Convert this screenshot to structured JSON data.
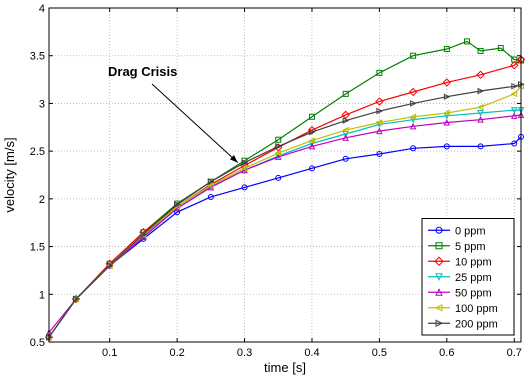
{
  "chart_data": {
    "type": "line",
    "xlabel": "time [s]",
    "ylabel": "velocity [m/s]",
    "xlim": [
      0.01,
      0.71
    ],
    "ylim": [
      0.5,
      4
    ],
    "xticks": [
      0.1,
      0.2,
      0.3,
      0.4,
      0.5,
      0.6,
      0.7
    ],
    "xtick_labels": [
      "0.1",
      "0.2",
      "0.3",
      "0.4",
      "0.5",
      "0.6",
      "0.7"
    ],
    "yticks": [
      0.5,
      1,
      1.5,
      2,
      2.5,
      3,
      3.5,
      4
    ],
    "ytick_labels": [
      "0.5",
      "1",
      "1.5",
      "2",
      "2.5",
      "3",
      "3.5",
      "4"
    ],
    "grid": true,
    "legend_position": "bottom-right",
    "annotation": {
      "text": "Drag Crisis",
      "arrow_to": [
        0.29,
        2.38
      ]
    },
    "series": [
      {
        "name": "0 ppm",
        "color": "#0000ff",
        "marker": "circle",
        "x": [
          0.01,
          0.05,
          0.1,
          0.15,
          0.2,
          0.25,
          0.3,
          0.35,
          0.4,
          0.45,
          0.5,
          0.55,
          0.6,
          0.65,
          0.7,
          0.71
        ],
        "y": [
          0.55,
          0.95,
          1.3,
          1.58,
          1.86,
          2.02,
          2.12,
          2.22,
          2.32,
          2.42,
          2.47,
          2.53,
          2.55,
          2.55,
          2.58,
          2.65
        ]
      },
      {
        "name": "5 ppm",
        "color": "#008000",
        "marker": "square",
        "x": [
          0.01,
          0.05,
          0.1,
          0.15,
          0.2,
          0.25,
          0.3,
          0.35,
          0.4,
          0.45,
          0.5,
          0.55,
          0.6,
          0.63,
          0.65,
          0.68,
          0.7,
          0.71
        ],
        "y": [
          0.55,
          0.95,
          1.32,
          1.65,
          1.95,
          2.18,
          2.4,
          2.62,
          2.86,
          3.1,
          3.32,
          3.5,
          3.57,
          3.65,
          3.55,
          3.58,
          3.46,
          3.45
        ]
      },
      {
        "name": "10 ppm",
        "color": "#ff0000",
        "marker": "diamond",
        "x": [
          0.01,
          0.05,
          0.1,
          0.15,
          0.2,
          0.25,
          0.3,
          0.35,
          0.4,
          0.45,
          0.5,
          0.55,
          0.6,
          0.65,
          0.7,
          0.71
        ],
        "y": [
          0.55,
          0.95,
          1.32,
          1.65,
          1.92,
          2.15,
          2.35,
          2.54,
          2.72,
          2.88,
          3.02,
          3.12,
          3.22,
          3.3,
          3.4,
          3.46
        ]
      },
      {
        "name": "25 ppm",
        "color": "#00bfbf",
        "marker": "triangle-down",
        "x": [
          0.01,
          0.05,
          0.1,
          0.15,
          0.2,
          0.25,
          0.3,
          0.35,
          0.4,
          0.45,
          0.5,
          0.55,
          0.6,
          0.65,
          0.7,
          0.71
        ],
        "y": [
          0.55,
          0.95,
          1.3,
          1.62,
          1.9,
          2.13,
          2.3,
          2.45,
          2.58,
          2.68,
          2.78,
          2.83,
          2.87,
          2.9,
          2.93,
          2.93
        ]
      },
      {
        "name": "50 ppm",
        "color": "#bf00bf",
        "marker": "triangle-up",
        "x": [
          0.01,
          0.05,
          0.1,
          0.15,
          0.2,
          0.25,
          0.3,
          0.35,
          0.4,
          0.45,
          0.5,
          0.55,
          0.6,
          0.65,
          0.7,
          0.71
        ],
        "y": [
          0.6,
          0.95,
          1.3,
          1.6,
          1.9,
          2.12,
          2.3,
          2.44,
          2.55,
          2.64,
          2.71,
          2.76,
          2.8,
          2.83,
          2.87,
          2.88
        ]
      },
      {
        "name": "100 ppm",
        "color": "#bfbf00",
        "marker": "triangle-left",
        "x": [
          0.01,
          0.05,
          0.1,
          0.15,
          0.2,
          0.25,
          0.3,
          0.35,
          0.4,
          0.45,
          0.5,
          0.55,
          0.6,
          0.65,
          0.7,
          0.71
        ],
        "y": [
          0.55,
          0.95,
          1.3,
          1.62,
          1.92,
          2.14,
          2.32,
          2.48,
          2.61,
          2.72,
          2.8,
          2.86,
          2.9,
          2.96,
          3.1,
          3.18
        ]
      },
      {
        "name": "200 ppm",
        "color": "#404040",
        "marker": "triangle-right",
        "x": [
          0.01,
          0.05,
          0.1,
          0.15,
          0.2,
          0.25,
          0.3,
          0.35,
          0.4,
          0.45,
          0.5,
          0.55,
          0.6,
          0.65,
          0.7,
          0.71
        ],
        "y": [
          0.55,
          0.95,
          1.3,
          1.63,
          1.94,
          2.18,
          2.38,
          2.55,
          2.7,
          2.82,
          2.92,
          3.0,
          3.07,
          3.13,
          3.18,
          3.2
        ]
      }
    ]
  }
}
